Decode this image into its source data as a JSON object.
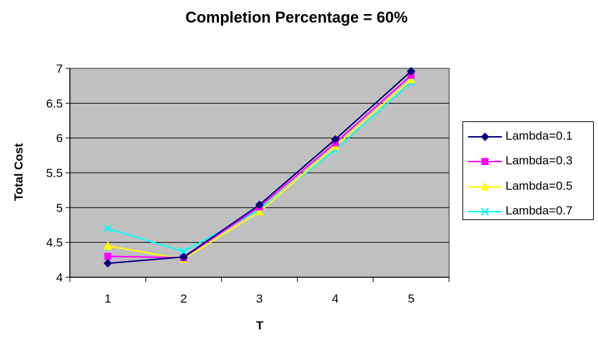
{
  "chart_data": {
    "type": "line",
    "title": "Completion Percentage = 60%",
    "xlabel": "T",
    "ylabel": "Total Cost",
    "categories": [
      "1",
      "2",
      "3",
      "4",
      "5"
    ],
    "ylim": [
      4,
      7
    ],
    "yticks": [
      "4",
      "4.5",
      "5",
      "5.5",
      "6",
      "6.5",
      "7"
    ],
    "grid": true,
    "legend_position": "right",
    "series": [
      {
        "name": "Lambda=0.1",
        "color": "#000080",
        "marker": "diamond",
        "values": [
          4.2,
          4.29,
          5.04,
          5.98,
          6.96
        ]
      },
      {
        "name": "Lambda=0.3",
        "color": "#FF00FF",
        "marker": "square",
        "values": [
          4.3,
          4.28,
          5.01,
          5.93,
          6.9
        ]
      },
      {
        "name": "Lambda=0.5",
        "color": "#FFFF00",
        "marker": "triangle",
        "values": [
          4.45,
          4.26,
          4.94,
          5.88,
          6.84
        ]
      },
      {
        "name": "Lambda=0.7",
        "color": "#00FFFF",
        "marker": "x",
        "values": [
          4.7,
          4.37,
          4.97,
          5.83,
          6.8
        ]
      }
    ]
  },
  "colors": {
    "plot_background": "#C0C0C0",
    "gridline": "#000000"
  }
}
